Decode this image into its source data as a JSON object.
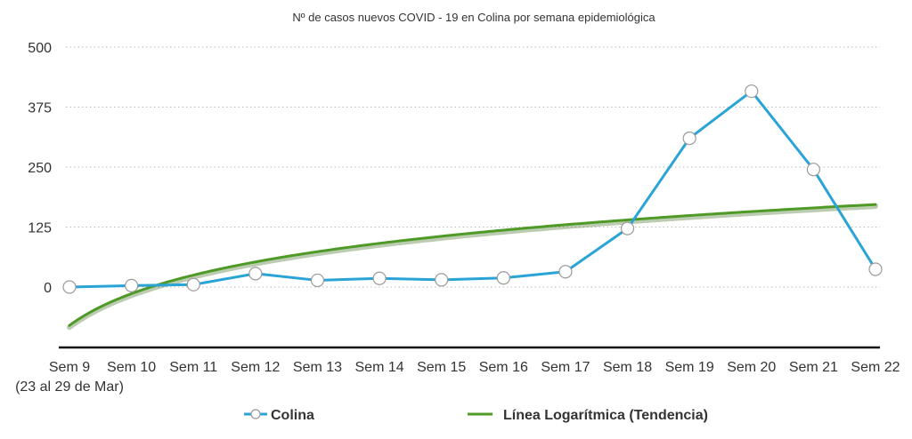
{
  "chart_data": {
    "type": "line",
    "title": "Nº de casos nuevos COVID - 19 en Colina por semana epidemiológica",
    "categories": [
      "Sem 9",
      "Sem 10",
      "Sem 11",
      "Sem 12",
      "Sem 13",
      "Sem 14",
      "Sem 15",
      "Sem 16",
      "Sem 17",
      "Sem 18",
      "Sem 19",
      "Sem 20",
      "Sem 21",
      "Sem 22"
    ],
    "category_note": "(23 al 29 de Mar)",
    "yticks": [
      "500",
      "375",
      "250",
      "125",
      "0"
    ],
    "ylim": [
      -90,
      500
    ],
    "grid": true,
    "legend_position": "bottom",
    "series": [
      {
        "name": "Colina",
        "values": [
          0,
          3,
          5,
          28,
          14,
          18,
          15,
          19,
          32,
          122,
          310,
          408,
          245,
          37
        ],
        "color": "#2aa3d6",
        "marker": "open-circle"
      },
      {
        "name": "Línea Logarítmica (Tendencia)",
        "type": "log-trend",
        "log_fit": {
          "a": -80,
          "b": 95.5
        },
        "color": "#4f9a26"
      }
    ]
  }
}
